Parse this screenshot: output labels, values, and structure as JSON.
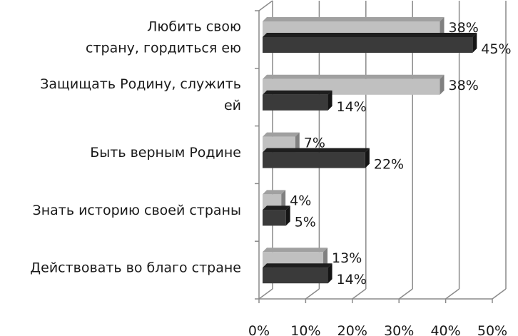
{
  "chart_data": {
    "type": "bar",
    "orientation": "horizontal",
    "style": "3d-clustered",
    "categories": [
      [
        "Любить свою",
        "страну, гордиться ею"
      ],
      [
        "Защищать Родину, служить",
        "ей"
      ],
      [
        "Быть верным Родине"
      ],
      [
        "Знать историю своей страны"
      ],
      [
        "Действовать во благо стране"
      ]
    ],
    "series": [
      {
        "values": [
          38,
          38,
          7,
          4,
          13
        ],
        "color": "#c0c0c0"
      },
      {
        "values": [
          45,
          14,
          22,
          5,
          14
        ],
        "color": "#3a3a3a"
      }
    ],
    "data_labels": [
      [
        "38%",
        "38%",
        "7%",
        "4%",
        "13%"
      ],
      [
        "45%",
        "14%",
        "22%",
        "5%",
        "14%"
      ]
    ],
    "xlim": [
      0,
      50
    ],
    "xticks": [
      "0%",
      "10%",
      "20%",
      "30%",
      "40%",
      "50%"
    ],
    "grid": true,
    "legend": "none"
  }
}
